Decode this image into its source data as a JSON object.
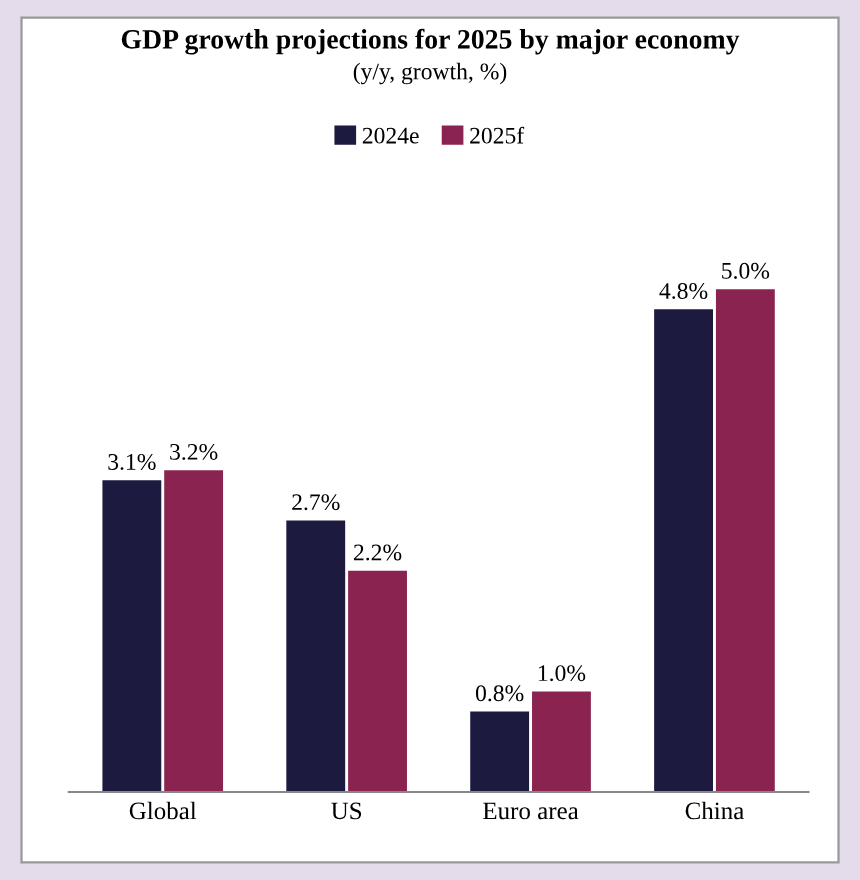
{
  "chart_data": {
    "type": "bar",
    "title": "GDP growth projections for 2025 by major economy",
    "subtitle": "(y/y, growth, %)",
    "categories": [
      "Global",
      "US",
      "Euro area",
      "China"
    ],
    "series": [
      {
        "name": "2024e",
        "color": "#1c1a3f",
        "values": [
          3.1,
          2.7,
          0.8,
          4.8
        ],
        "value_labels": [
          "3.1%",
          "2.7%",
          "0.8%",
          "4.8%"
        ]
      },
      {
        "name": "2025f",
        "color": "#8a2350",
        "values": [
          3.2,
          2.2,
          1.0,
          5.0
        ],
        "value_labels": [
          "3.2%",
          "2.2%",
          "1.0%",
          "5.0%"
        ]
      }
    ],
    "legend": "top",
    "grid": false
  }
}
